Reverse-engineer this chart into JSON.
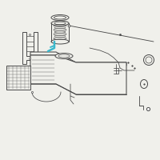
{
  "bg_color": "#f0f0eb",
  "line_color": "#4a4a4a",
  "highlight_color": "#3ab8cc",
  "lw": 0.7
}
